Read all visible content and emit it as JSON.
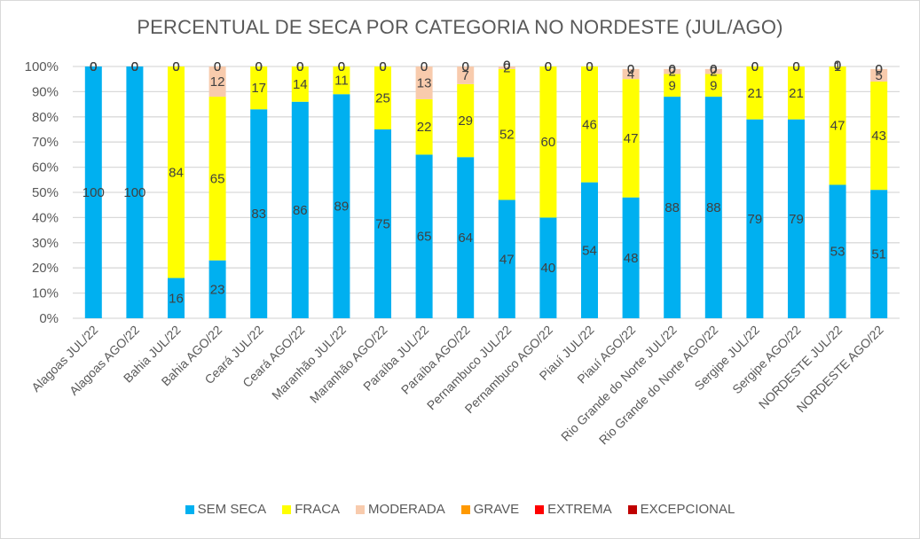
{
  "chart_data": {
    "type": "bar",
    "stacked": true,
    "percent_stacked": true,
    "title": "PERCENTUAL DE SECA POR CATEGORIA NO NORDESTE (JUL/AGO)",
    "xlabel": "",
    "ylabel": "",
    "ylim": [
      0,
      100
    ],
    "yticks": [
      "0%",
      "10%",
      "20%",
      "30%",
      "40%",
      "50%",
      "60%",
      "70%",
      "80%",
      "90%",
      "100%"
    ],
    "grid": true,
    "legend_position": "bottom",
    "categories": [
      "Alagoas JUL/22",
      "Alagoas AGO/22",
      "Bahia JUL/22",
      "Bahia AGO/22",
      "Ceará JUL/22",
      "Ceará AGO/22",
      "Maranhão JUL/22",
      "Maranhão AGO/22",
      "Paraíba JUL/22",
      "Paraíba AGO/22",
      "Pernambuco JUL/22",
      "Pernambuco AGO/22",
      "Piauí JUL/22",
      "Piauí AGO/22",
      "Rio Grande do Norte JUL/22",
      "Rio Grande do Norte AGO/22",
      "Sergipe JUL/22",
      "Sergipe AGO/22",
      "NORDESTE JUL/22",
      "NORDESTE AGO/22"
    ],
    "series": [
      {
        "name": "SEM SECA",
        "color": "#00b0f0",
        "values": [
          100,
          100,
          16,
          23,
          83,
          86,
          89,
          75,
          65,
          64,
          47,
          40,
          54,
          48,
          88,
          88,
          79,
          79,
          53,
          51
        ]
      },
      {
        "name": "FRACA",
        "color": "#ffff00",
        "values": [
          0,
          0,
          84,
          65,
          17,
          14,
          11,
          25,
          22,
          29,
          52,
          60,
          46,
          47,
          9,
          9,
          21,
          21,
          47,
          43
        ]
      },
      {
        "name": "MODERADA",
        "color": "#f8cbad",
        "values": [
          0,
          0,
          0,
          12,
          0,
          0,
          0,
          0,
          13,
          7,
          2,
          0,
          0,
          4,
          2,
          2,
          0,
          0,
          1,
          5
        ]
      },
      {
        "name": "GRAVE",
        "color": "#ff9900",
        "values": [
          0,
          0,
          0,
          0,
          0,
          0,
          0,
          0,
          0,
          0,
          0,
          0,
          0,
          0,
          0,
          0,
          0,
          0,
          0,
          0
        ]
      },
      {
        "name": "EXTREMA",
        "color": "#ff0000",
        "values": [
          0,
          0,
          0,
          0,
          0,
          0,
          0,
          0,
          0,
          0,
          0,
          0,
          0,
          0,
          0,
          0,
          0,
          0,
          0,
          0
        ]
      },
      {
        "name": "EXCEPCIONAL",
        "color": "#c00000",
        "values": [
          0,
          0,
          0,
          0,
          0,
          0,
          0,
          0,
          0,
          0,
          0,
          0,
          0,
          0,
          0,
          0,
          0,
          0,
          0,
          0
        ]
      }
    ]
  }
}
